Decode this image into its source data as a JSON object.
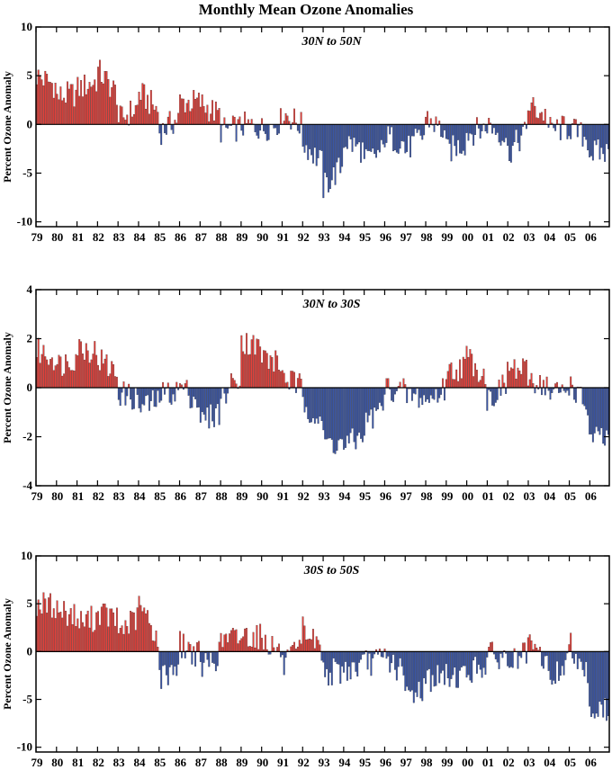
{
  "title": "Monthly Mean Ozone Anomalies",
  "colors": {
    "positive": "#e8403a",
    "negative": "#3a56a8",
    "axis": "#000000"
  },
  "chart_data": [
    {
      "type": "bar",
      "title": "30N to 50N",
      "ylabel": "Percent Ozone Anomaly",
      "ylim": [
        -10.5,
        10
      ],
      "yticks": [
        10,
        5,
        0,
        -5,
        -10
      ],
      "x_start": 1979.0,
      "x_end": 2006.95,
      "xtick_labels": [
        "79",
        "80",
        "81",
        "82",
        "83",
        "84",
        "85",
        "86",
        "87",
        "88",
        "89",
        "90",
        "91",
        "92",
        "93",
        "94",
        "95",
        "96",
        "97",
        "98",
        "99",
        "00",
        "01",
        "02",
        "03",
        "04",
        "05",
        "06"
      ],
      "annual_anomaly_approx": [
        5.0,
        2.8,
        3.6,
        5.5,
        0.4,
        3.3,
        -0.8,
        2.3,
        2.2,
        -0.6,
        -0.1,
        -0.5,
        1.3,
        -1.8,
        -6.5,
        -1.6,
        -3.9,
        -1.2,
        -2.7,
        0.8,
        -2.8,
        -0.9,
        0.1,
        -3.0,
        2.0,
        -0.5,
        -0.3,
        -2.9
      ]
    },
    {
      "type": "bar",
      "title": "30N to 30S",
      "ylabel": "Percent Ozone Anomaly",
      "ylim": [
        -4,
        4
      ],
      "yticks": [
        4,
        2,
        0,
        -2,
        -4
      ],
      "x_start": 1979.0,
      "x_end": 2006.95,
      "xtick_labels": [
        "79",
        "80",
        "81",
        "82",
        "83",
        "84",
        "85",
        "86",
        "87",
        "88",
        "89",
        "90",
        "91",
        "92",
        "93",
        "94",
        "95",
        "96",
        "97",
        "98",
        "99",
        "00",
        "01",
        "02",
        "03",
        "04",
        "05",
        "06"
      ],
      "annual_anomaly_approx": [
        1.5,
        0.9,
        1.7,
        1.2,
        -0.2,
        -0.8,
        -0.3,
        0.1,
        -1.4,
        -0.5,
        1.9,
        1.3,
        0.5,
        -0.6,
        -2.2,
        -2.4,
        -1.5,
        0.0,
        -0.3,
        -0.6,
        0.6,
        1.3,
        -0.5,
        0.8,
        0.4,
        -0.3,
        0.2,
        -2.1
      ]
    },
    {
      "type": "bar",
      "title": "30S to 50S",
      "ylabel": "Percent Ozone Anomaly",
      "ylim": [
        -10.5,
        10
      ],
      "yticks": [
        10,
        5,
        0,
        -5,
        -10
      ],
      "x_start": 1979.0,
      "x_end": 2006.95,
      "xtick_labels": [
        "79",
        "80",
        "81",
        "82",
        "83",
        "84",
        "85",
        "86",
        "87",
        "88",
        "89",
        "90",
        "91",
        "92",
        "93",
        "94",
        "95",
        "96",
        "97",
        "98",
        "99",
        "00",
        "01",
        "02",
        "03",
        "04",
        "05",
        "06"
      ],
      "annual_anomaly_approx": [
        5.0,
        4.4,
        3.0,
        4.2,
        2.2,
        5.0,
        -2.9,
        0.8,
        -1.7,
        1.2,
        1.8,
        1.4,
        -1.6,
        2.4,
        -2.2,
        -1.9,
        -1.2,
        -0.5,
        -4.6,
        -2.8,
        -2.6,
        -2.2,
        -0.3,
        -1.2,
        0.6,
        -3.1,
        1.0,
        -6.1
      ]
    }
  ]
}
